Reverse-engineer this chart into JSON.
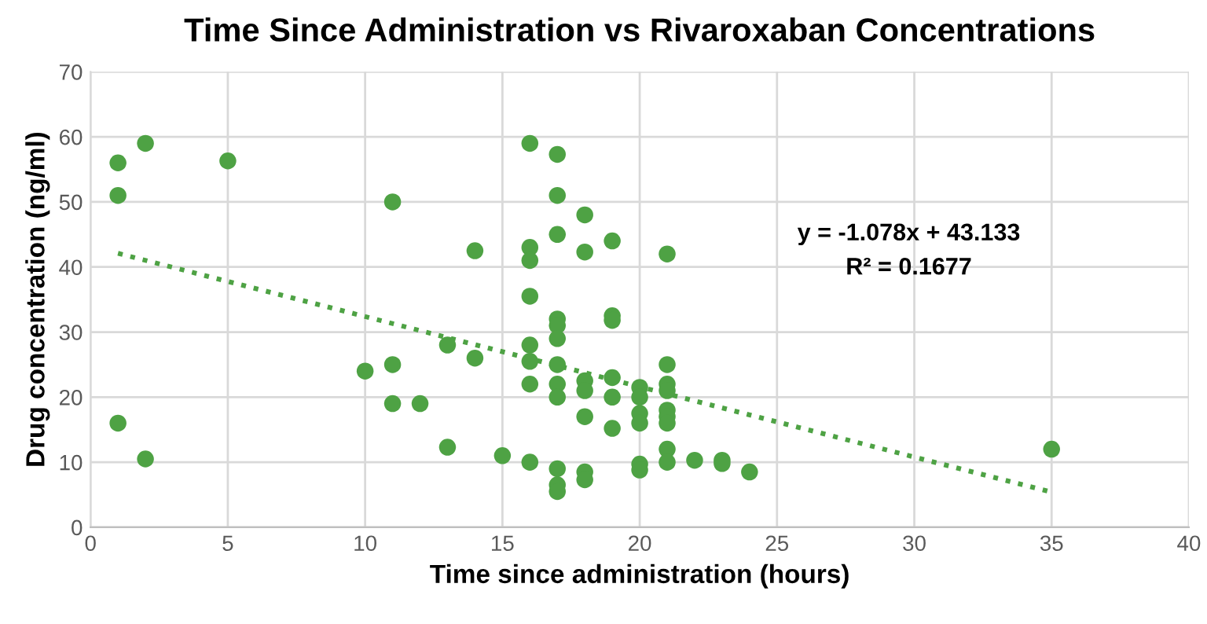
{
  "chart_data": {
    "type": "scatter",
    "title": "Time Since Administration vs Rivaroxaban Concentrations",
    "xlabel": "Time since administration (hours)",
    "ylabel": "Drug concentration (ng/ml)",
    "xlim": [
      0,
      40
    ],
    "xticks": [
      0,
      5,
      10,
      15,
      20,
      25,
      30,
      35,
      40
    ],
    "ylim": [
      0,
      70
    ],
    "yticks": [
      0,
      10,
      20,
      30,
      40,
      50,
      60,
      70
    ],
    "grid": true,
    "marker": "circle",
    "annotations": [
      "y = -1.078x + 43.133",
      "R² = 0.1677"
    ],
    "series": [
      {
        "color": "#4ea244",
        "x": [
          1,
          1,
          1,
          2,
          2,
          5,
          10,
          11,
          11,
          11,
          12,
          13,
          13,
          14,
          14,
          15,
          16,
          16,
          16,
          16,
          16,
          16,
          16,
          16,
          17,
          17,
          17,
          17,
          17,
          17,
          17,
          17,
          17,
          17,
          17,
          17,
          18,
          18,
          18,
          18,
          18,
          18,
          18,
          19,
          19,
          19,
          19,
          19,
          19,
          20,
          20,
          20,
          20,
          20,
          20,
          21,
          21,
          21,
          21,
          21,
          21,
          21,
          21,
          21,
          22,
          23,
          23,
          24,
          35
        ],
        "values": [
          56,
          51,
          16,
          59,
          10.5,
          56.3,
          24,
          50,
          25,
          19,
          19,
          28,
          12.3,
          42.5,
          26,
          11,
          59,
          43,
          41,
          35.5,
          28,
          25.5,
          22,
          10,
          57.3,
          51,
          45,
          32,
          31,
          29,
          25,
          22,
          20,
          9,
          6.5,
          5.5,
          48,
          42.3,
          22.5,
          21,
          17,
          8.5,
          7.3,
          44,
          32.5,
          31.8,
          23,
          20,
          15.2,
          21.5,
          20,
          17.5,
          16,
          9.7,
          8.8,
          42,
          25,
          22,
          21,
          18,
          17,
          16,
          12,
          10,
          10.3,
          10.3,
          9.8,
          8.5,
          12
        ]
      },
      {
        "type": "line",
        "color": "#4ea244",
        "line_style": "dotted",
        "marker": "none",
        "x": [
          1,
          35
        ],
        "values": [
          42.1,
          5.4
        ]
      }
    ]
  }
}
